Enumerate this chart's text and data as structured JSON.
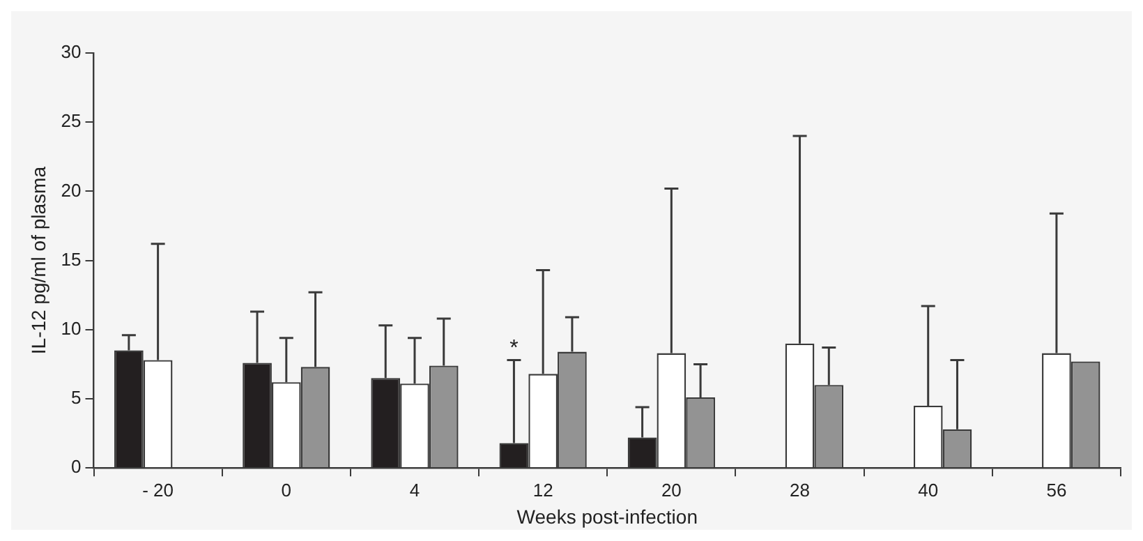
{
  "chart_data": {
    "type": "bar",
    "xlabel": "Weeks post-infection",
    "ylabel": "IL-12 pg/ml of plasma",
    "categories": [
      "- 20",
      "0",
      "4",
      "12",
      "20",
      "28",
      "40",
      "56"
    ],
    "series": [
      {
        "color": "#231f20",
        "values": [
          8.5,
          7.6,
          6.5,
          1.8,
          2.2,
          null,
          null,
          null
        ],
        "errors": [
          [
            8.5,
            9.6
          ],
          [
            7.6,
            11.3
          ],
          [
            6.5,
            10.3
          ],
          [
            1.8,
            7.8
          ],
          [
            2.2,
            4.4
          ],
          null,
          null,
          null
        ]
      },
      {
        "color": "#ffffff",
        "values": [
          7.8,
          6.2,
          6.1,
          6.8,
          8.3,
          9.0,
          4.5,
          8.3
        ],
        "errors": [
          [
            7.8,
            16.2
          ],
          [
            6.2,
            9.4
          ],
          [
            6.1,
            9.4
          ],
          [
            6.8,
            14.3
          ],
          [
            8.3,
            20.2
          ],
          [
            9.0,
            24.0
          ],
          [
            4.5,
            11.7
          ],
          [
            8.3,
            18.4
          ]
        ]
      },
      {
        "color": "#939393",
        "values": [
          null,
          7.3,
          7.4,
          8.4,
          5.1,
          6.0,
          2.8,
          7.7
        ],
        "errors": [
          null,
          [
            7.3,
            12.7
          ],
          [
            7.4,
            10.8
          ],
          [
            8.4,
            10.9
          ],
          [
            5.1,
            7.5
          ],
          [
            6.0,
            8.7
          ],
          [
            2.8,
            7.8
          ],
          null
        ]
      }
    ],
    "ylim": [
      0,
      30
    ],
    "yticks": [
      0,
      5,
      10,
      15,
      20,
      25,
      30
    ],
    "grid": false,
    "legend": false,
    "annotations": [
      {
        "text": "*",
        "x": "12",
        "y": 8.8
      }
    ]
  }
}
